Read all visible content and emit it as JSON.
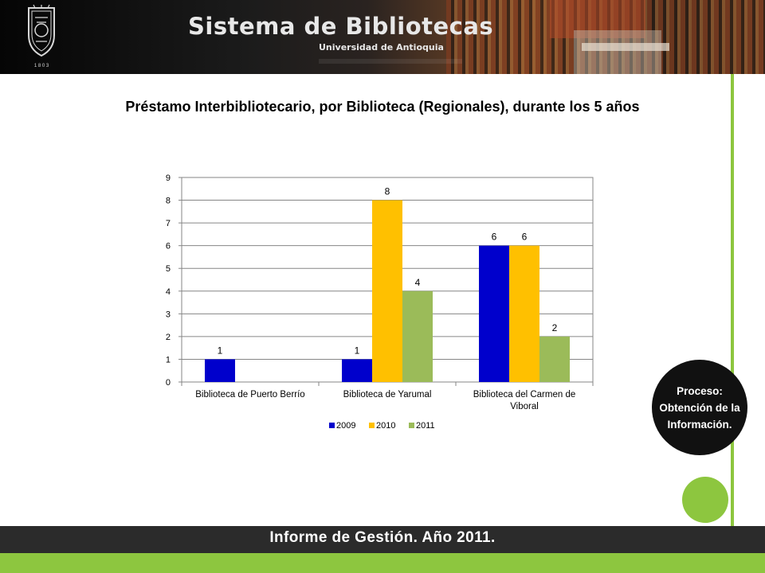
{
  "header": {
    "title": "Sistema de Bibliotecas",
    "subtitle": "Universidad de Antioquia",
    "logo_year": "1 8 0 3"
  },
  "chart_data": {
    "type": "bar",
    "title": "Préstamo Interbibliotecario, por Biblioteca (Regionales), durante los 5 años",
    "categories": [
      "Biblioteca de Puerto Berrío",
      "Biblioteca de Yarumal",
      "Biblioteca del Carmen de Viboral"
    ],
    "series": [
      {
        "name": "2009",
        "color": "#0000cc",
        "values": [
          1,
          1,
          6
        ]
      },
      {
        "name": "2010",
        "color": "#ffc000",
        "values": [
          null,
          8,
          6
        ]
      },
      {
        "name": "2011",
        "color": "#9bbb59",
        "values": [
          null,
          4,
          2
        ]
      }
    ],
    "ylim": [
      0,
      9
    ],
    "yticks": [
      0,
      1,
      2,
      3,
      4,
      5,
      6,
      7,
      8,
      9
    ],
    "grid": true,
    "legend_position": "bottom"
  },
  "side": {
    "process_label": "Proceso: Obtención de la Información."
  },
  "footer": {
    "text": "Informe de Gestión. Año 2011."
  }
}
